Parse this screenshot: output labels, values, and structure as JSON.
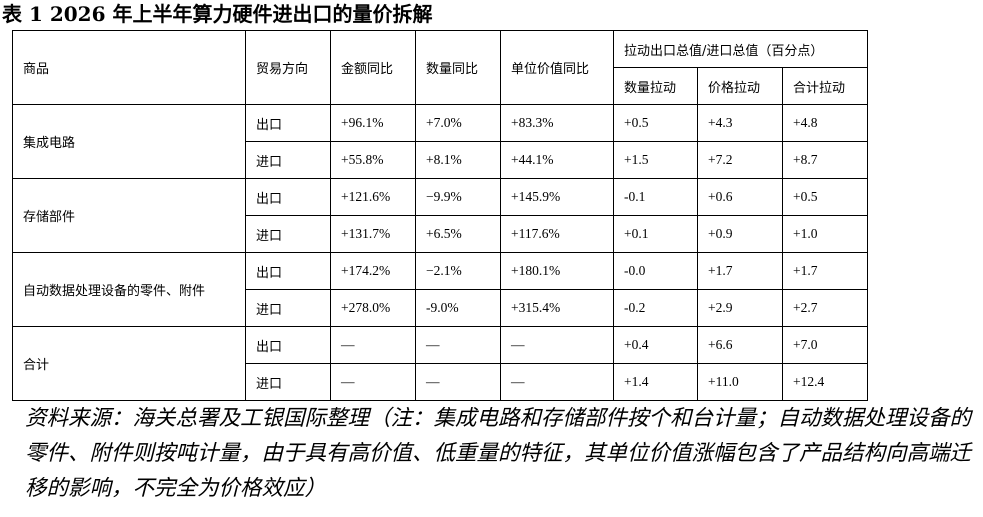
{
  "title": "表 1 2026 年上半年算力硬件进出口的量价拆解",
  "table": {
    "header": {
      "product": "商品",
      "direction": "贸易方向",
      "value_yoy": "金额同比",
      "volume_yoy": "数量同比",
      "unit_value_yoy": "单位价值同比",
      "contribution_group": "拉动出口总值/进口总值（百分点）",
      "contribution": [
        "数量拉动",
        "价格拉动",
        "合计拉动"
      ]
    },
    "groups": [
      {
        "product": "集成电路",
        "rows": [
          [
            "出口",
            "+96.1%",
            "+7.0%",
            "+83.3%",
            "+0.5",
            "+4.3",
            "+4.8"
          ],
          [
            "进口",
            "+55.8%",
            "+8.1%",
            "+44.1%",
            "+1.5",
            "+7.2",
            "+8.7"
          ]
        ]
      },
      {
        "product": "存储部件",
        "rows": [
          [
            "出口",
            "+121.6%",
            "−9.9%",
            "+145.9%",
            "-0.1",
            "+0.6",
            "+0.5"
          ],
          [
            "进口",
            "+131.7%",
            "+6.5%",
            "+117.6%",
            "+0.1",
            "+0.9",
            "+1.0"
          ]
        ]
      },
      {
        "product": "自动数据处理设备的零件、附件",
        "rows": [
          [
            "出口",
            "+174.2%",
            "−2.1%",
            "+180.1%",
            "-0.0",
            "+1.7",
            "+1.7"
          ],
          [
            "进口",
            "+278.0%",
            "-9.0%",
            "+315.4%",
            "-0.2",
            "+2.9",
            "+2.7"
          ]
        ]
      },
      {
        "product": "合计",
        "rows": [
          [
            "出口",
            "—",
            "—",
            "—",
            "+0.4",
            "+6.6",
            "+7.0"
          ],
          [
            "进口",
            "—",
            "—",
            "—",
            "+1.4",
            "+11.0",
            "+12.4"
          ]
        ]
      }
    ]
  },
  "note": "资料来源：海关总署及工银国际整理（注：集成电路和存储部件按个和台计量；自动数据处理设备的零件、附件则按吨计量，由于具有高价值、低重量的特征，其单位价值涨幅包含了产品结构向高端迁移的影响，不完全为价格效应）"
}
